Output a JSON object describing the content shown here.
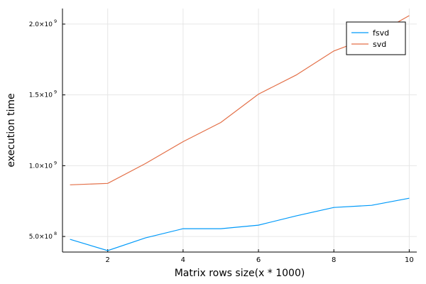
{
  "chart_data": {
    "type": "line",
    "xlabel": "Matrix rows size(x * 1000)",
    "ylabel": "execution time",
    "x": [
      1,
      2,
      3,
      4,
      5,
      6,
      7,
      8,
      9,
      10
    ],
    "xlim": [
      0.8,
      10.2
    ],
    "ylim": [
      390000000,
      2110000000
    ],
    "xticks": [
      2,
      4,
      6,
      8,
      10
    ],
    "xtick_labels": [
      "2",
      "4",
      "6",
      "8",
      "10"
    ],
    "yticks": [
      500000000,
      1000000000,
      1500000000,
      2000000000
    ],
    "ytick_labels": [
      {
        "mantissa": "5.0×10",
        "exponent": "8"
      },
      {
        "mantissa": "1.0×10",
        "exponent": "9"
      },
      {
        "mantissa": "1.5×10",
        "exponent": "9"
      },
      {
        "mantissa": "2.0×10",
        "exponent": "9"
      }
    ],
    "grid": true,
    "legend_position": "top-right",
    "series": [
      {
        "name": "fsvd",
        "color": "#009AFA",
        "values": [
          480000000,
          400000000,
          490000000,
          555000000,
          555000000,
          580000000,
          645000000,
          705000000,
          720000000,
          770000000
        ]
      },
      {
        "name": "svd",
        "color": "#E36F47",
        "values": [
          865000000,
          875000000,
          1015000000,
          1170000000,
          1305000000,
          1505000000,
          1640000000,
          1810000000,
          1910000000,
          2060000000
        ]
      }
    ]
  }
}
